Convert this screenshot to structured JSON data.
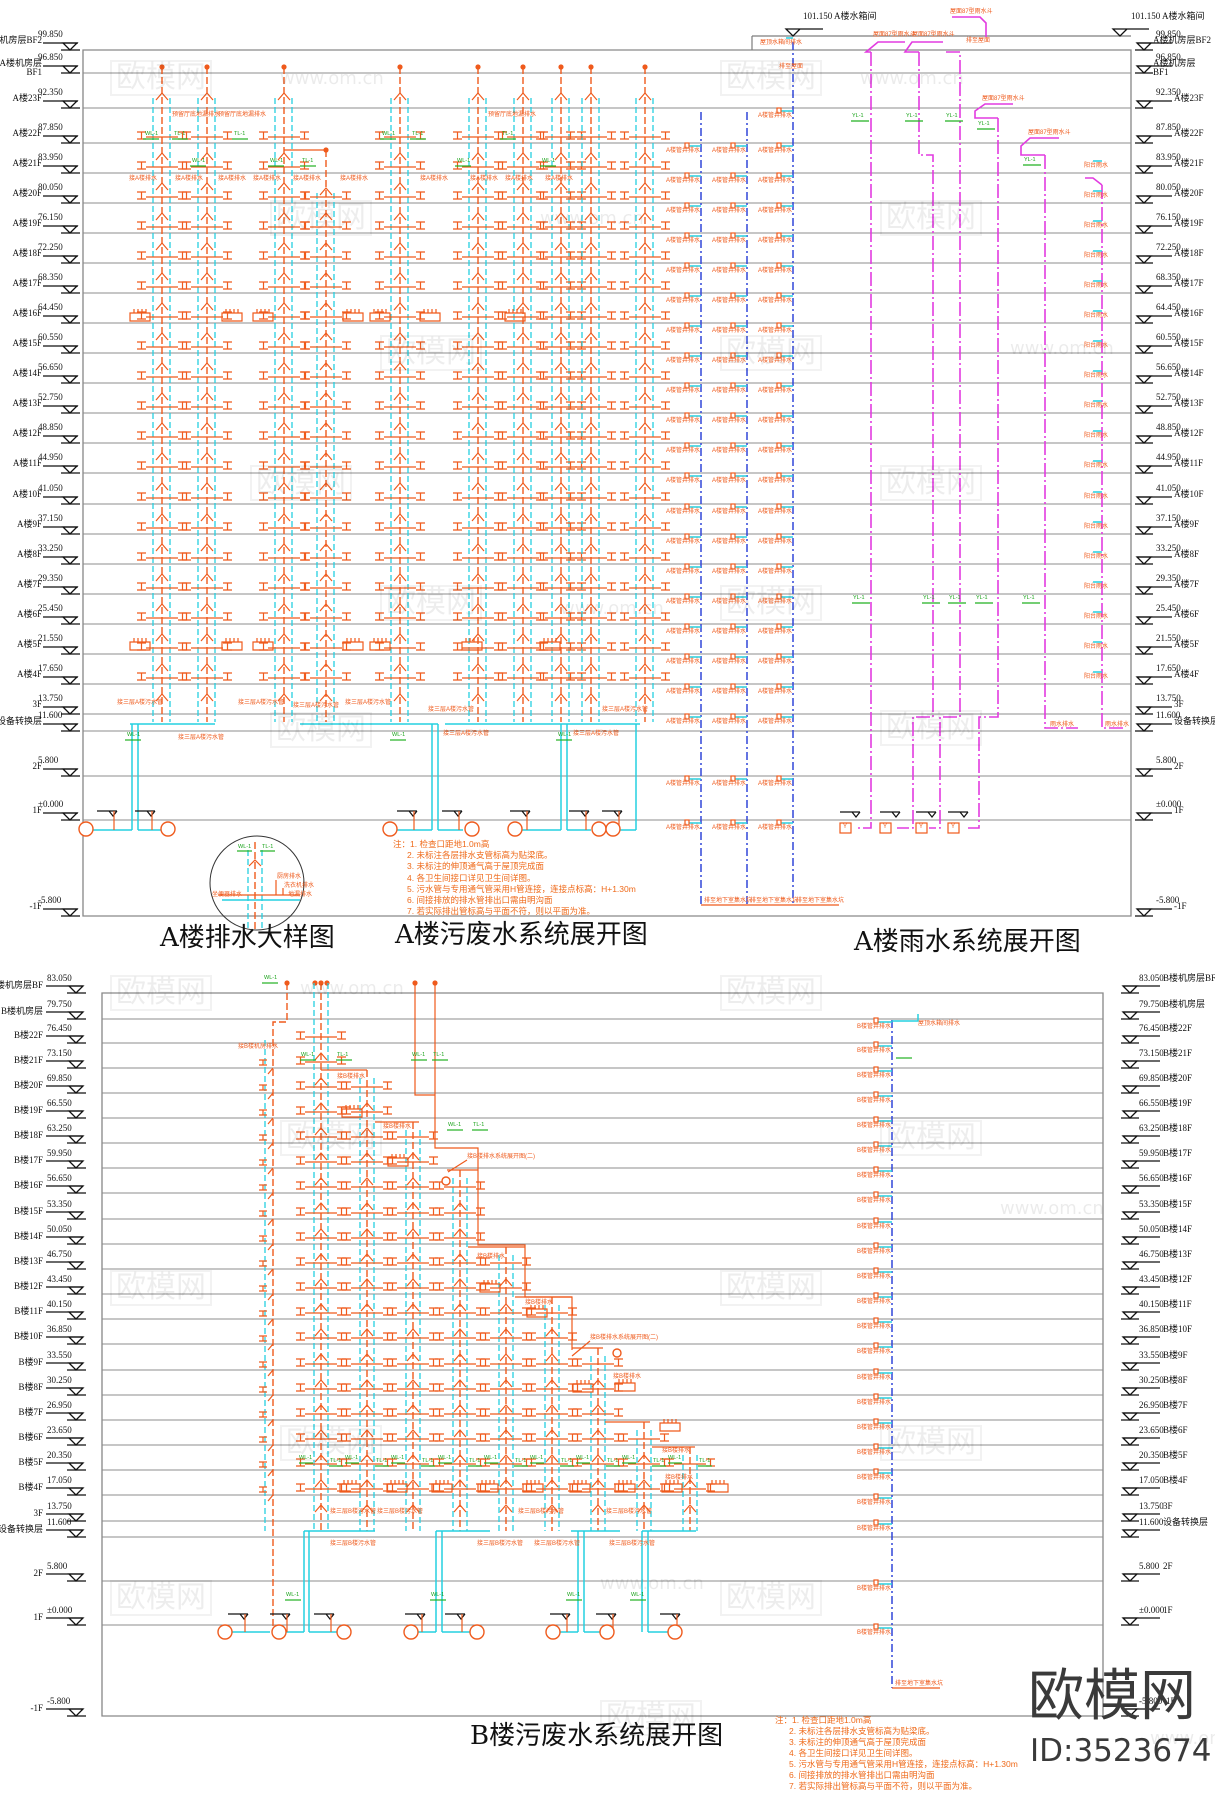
{
  "watermark": {
    "brand": "欧模网",
    "id": "ID:3523674",
    "faint_logo": "欧模网",
    "faint_url": "www.om.cn"
  },
  "a": {
    "levels": [
      {
        "label": "A楼机房层BF2",
        "elev": "99.850"
      },
      {
        "label": "A楼机房层\nBF1",
        "elev": "96.850"
      },
      {
        "label": "A楼23F",
        "elev": "92.350"
      },
      {
        "label": "A楼22F",
        "elev": "87.850"
      },
      {
        "label": "A楼21F",
        "elev": "83.950"
      },
      {
        "label": "A楼20F",
        "elev": "80.050"
      },
      {
        "label": "A楼19F",
        "elev": "76.150"
      },
      {
        "label": "A楼18F",
        "elev": "72.250"
      },
      {
        "label": "A楼17F",
        "elev": "68.350"
      },
      {
        "label": "A楼16F",
        "elev": "64.450"
      },
      {
        "label": "A楼15F",
        "elev": "60.550"
      },
      {
        "label": "A楼14F",
        "elev": "56.650"
      },
      {
        "label": "A楼13F",
        "elev": "52.750"
      },
      {
        "label": "A楼12F",
        "elev": "48.850"
      },
      {
        "label": "A楼11F",
        "elev": "44.950"
      },
      {
        "label": "A楼10F",
        "elev": "41.050"
      },
      {
        "label": "A楼9F",
        "elev": "37.150"
      },
      {
        "label": "A楼8F",
        "elev": "33.250"
      },
      {
        "label": "A楼7F",
        "elev": "29.350"
      },
      {
        "label": "A楼6F",
        "elev": "25.450"
      },
      {
        "label": "A楼5F",
        "elev": "21.550"
      },
      {
        "label": "A楼4F",
        "elev": "17.650"
      },
      {
        "label": "3F",
        "elev": "13.750"
      },
      {
        "label": "设备转换层",
        "elev": "11.600"
      },
      {
        "label": "2F",
        "elev": "5.800"
      },
      {
        "label": "1F",
        "elev": "±0.000"
      },
      {
        "label": "-1F",
        "elev": "-5.800"
      }
    ],
    "tank_markers": [
      {
        "text": "101.150 A楼水箱间"
      },
      {
        "text": "101.150 A楼水箱间"
      }
    ],
    "titles": {
      "detail": "A楼排水大样图",
      "sewage": "A楼污废水系统展开图",
      "rain": "A楼雨水系统展开图"
    },
    "notes": [
      "注：1. 检查口距地1.0m高",
      "2. 未标注各层排水支管标高为贴梁底。",
      "3. 未标注的伸顶通气高于屋顶完成面",
      "4. 各卫生间接口详见卫生间详图。",
      "5. 污水管与专用通气管采用H管连接，连接点标高：H+1.30m",
      "6. 间接排放的排水管排出口需由明沟面",
      "7. 若实际排出管标高与平面不符，则以平面为准。"
    ],
    "detail_labels": [
      "坐便器排水",
      "厨房排水",
      "洗衣机排水",
      "地漏排水"
    ],
    "pipe_labels": {
      "reserved_drain": "预留厅底地漏排水",
      "connect": "接A楼排水",
      "to_3f": "接三层A楼污水管",
      "tank_drain": "屋顶水箱间排水",
      "to_roof": "排至屋面",
      "shaft_drain": "A楼管井排水",
      "to_pit": "排至地下室集水坑",
      "roof_drain": "屋面87型雨水斗",
      "balcony": "阳台雨水",
      "rain_out": "雨水排水",
      "tag_w": "WL-1",
      "tag_t": "TL-1",
      "tag_y": "YL-1",
      "y_box": "Y"
    }
  },
  "b": {
    "levels": [
      {
        "label": "B楼机房层BF",
        "elev": "83.050"
      },
      {
        "label": "B楼机房层",
        "elev": "79.750"
      },
      {
        "label": "B楼22F",
        "elev": "76.450"
      },
      {
        "label": "B楼21F",
        "elev": "73.150"
      },
      {
        "label": "B楼20F",
        "elev": "69.850"
      },
      {
        "label": "B楼19F",
        "elev": "66.550"
      },
      {
        "label": "B楼18F",
        "elev": "63.250"
      },
      {
        "label": "B楼17F",
        "elev": "59.950"
      },
      {
        "label": "B楼16F",
        "elev": "56.650"
      },
      {
        "label": "B楼15F",
        "elev": "53.350"
      },
      {
        "label": "B楼14F",
        "elev": "50.050"
      },
      {
        "label": "B楼13F",
        "elev": "46.750"
      },
      {
        "label": "B楼12F",
        "elev": "43.450"
      },
      {
        "label": "B楼11F",
        "elev": "40.150"
      },
      {
        "label": "B楼10F",
        "elev": "36.850"
      },
      {
        "label": "B楼9F",
        "elev": "33.550"
      },
      {
        "label": "B楼8F",
        "elev": "30.250"
      },
      {
        "label": "B楼7F",
        "elev": "26.950"
      },
      {
        "label": "B楼6F",
        "elev": "23.650"
      },
      {
        "label": "B楼5F",
        "elev": "20.350"
      },
      {
        "label": "B楼4F",
        "elev": "17.050"
      },
      {
        "label": "3F",
        "elev": "13.750"
      },
      {
        "label": "设备转换层",
        "elev": "11.600"
      },
      {
        "label": "2F",
        "elev": "5.800"
      },
      {
        "label": "1F",
        "elev": "±0.000"
      },
      {
        "label": "-1F",
        "elev": "-5.800"
      }
    ],
    "titles": {
      "sewage": "B楼污废水系统展开图"
    },
    "notes": [
      "注：1. 检查口距地1.0m高",
      "2. 未标注各层排水支管标高为贴梁底。",
      "3. 未标注的伸顶通气高于屋顶完成面",
      "4. 各卫生间接口详见卫生间详图。",
      "5. 污水管与专用通气管采用H管连接，连接点标高：H+1.30m",
      "6. 间接排放的排水管排出口需由明沟面",
      "7. 若实际排出管标高与平面不符，则以平面为准。"
    ],
    "pipe_labels": {
      "machine_room": "接B楼机房排水",
      "connect": "接B楼排水",
      "continued": "接B楼排水系统展开图(二)",
      "to_3f": "接三层B楼污水管",
      "tank_drain": "屋顶水箱间排水",
      "shaft_drain": "B楼管井排水",
      "to_pit": "排至地下室集水坑",
      "tag_w": "WL-1",
      "tag_t": "TL-1"
    }
  }
}
